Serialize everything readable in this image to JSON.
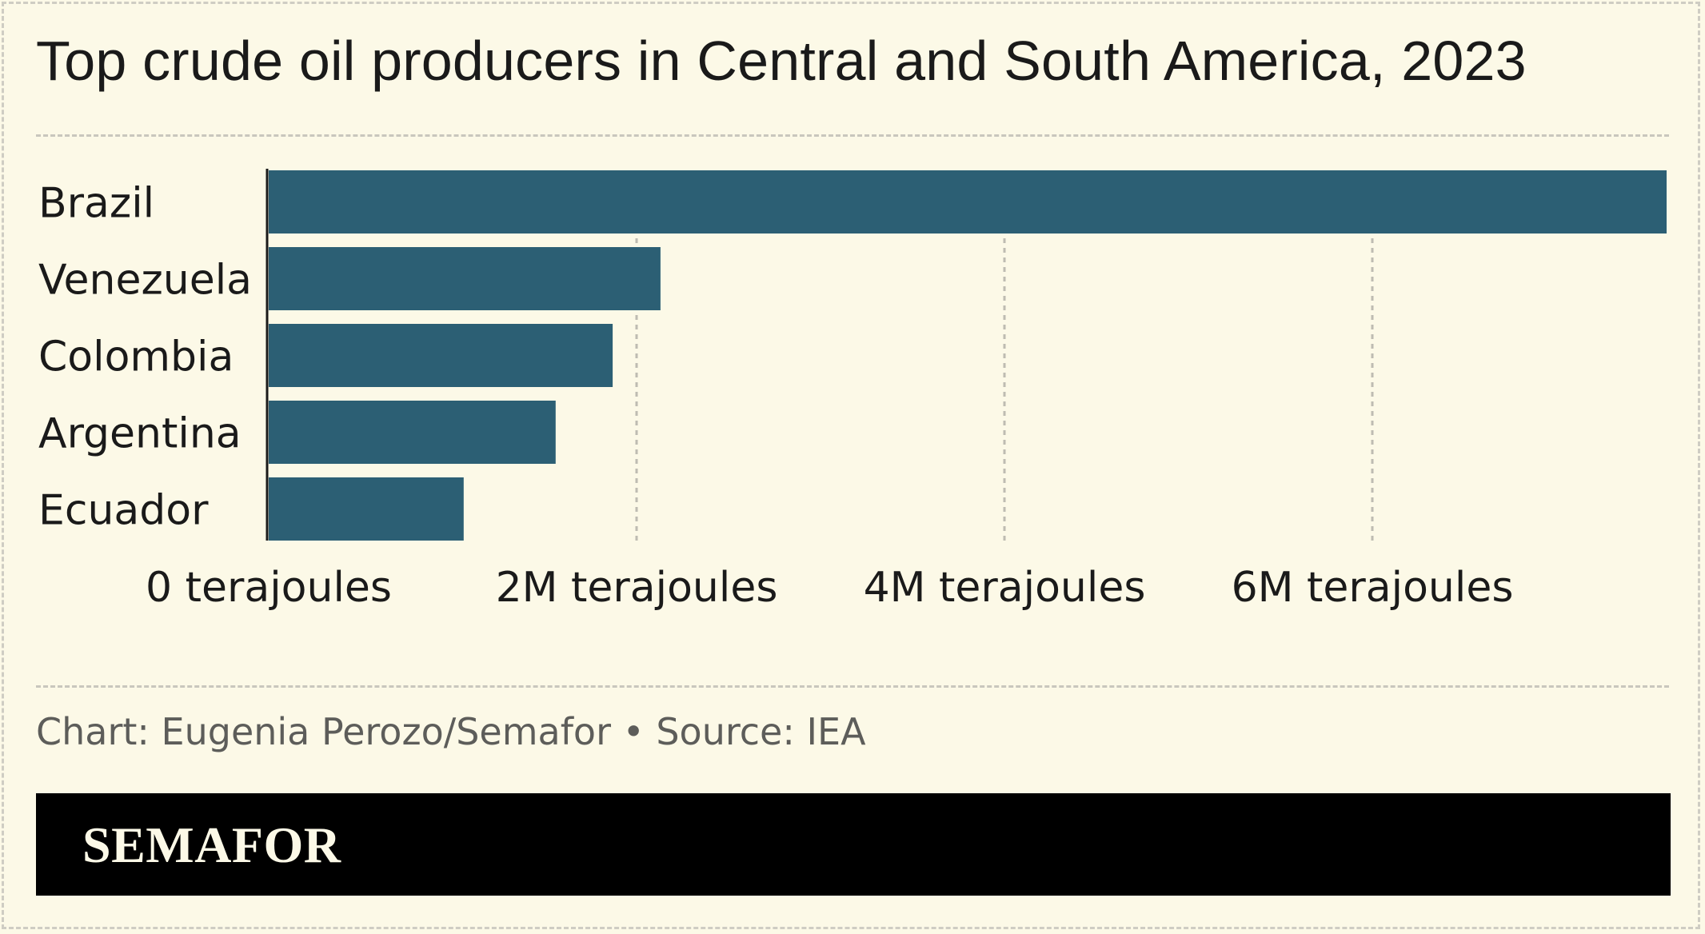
{
  "chart_data": {
    "type": "bar",
    "orientation": "horizontal",
    "title": "Top crude oil producers in Central and South America, 2023",
    "categories": [
      "Brazil",
      "Venezuela",
      "Colombia",
      "Argentina",
      "Ecuador"
    ],
    "values": [
      7600000,
      2130000,
      1870000,
      1560000,
      1060000
    ],
    "x_ticks": [
      {
        "value": 0,
        "label": "0 terajoules"
      },
      {
        "value": 2000000,
        "label": "2M terajoules"
      },
      {
        "value": 4000000,
        "label": "4M terajoules"
      },
      {
        "value": 6000000,
        "label": "6M terajoules"
      }
    ],
    "xlim": [
      0,
      7600000
    ],
    "xlabel": "",
    "ylabel": "",
    "grid": "vertical dashed",
    "bar_color": "#2c5f74",
    "grid_color": "#bebcb2"
  },
  "credit": "Chart: Eugenia Perozo/Semafor • Source: IEA",
  "brand": {
    "logo_text": "SEMAFOR",
    "footer_color": "#000000",
    "background_color": "#fcf9e7"
  }
}
